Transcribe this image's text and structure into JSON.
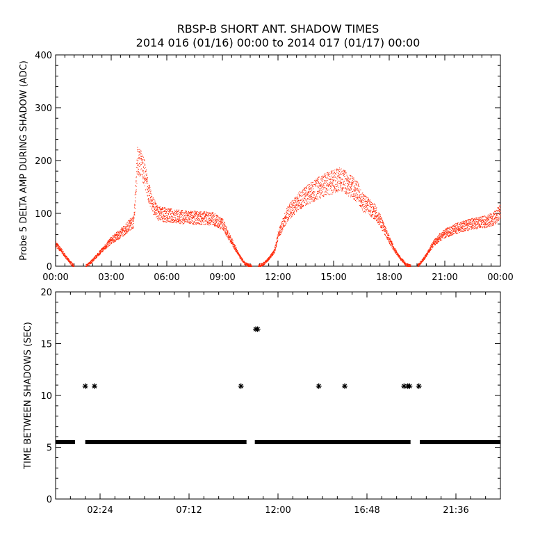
{
  "title": "RBSP-B SHORT ANT. SHADOW TIMES",
  "subtitle": "2014 016 (01/16) 00:00 to 2014 017 (01/17) 00:00",
  "colors": {
    "top_series": "#ff2200",
    "bottom_series": "#000000",
    "axis": "#000000"
  },
  "chart_data": [
    {
      "type": "scatter",
      "ylabel": "Probe 5 DELTA AMP DURING SHADOW (ADC)",
      "xlabel": "",
      "xlim": [
        0,
        24
      ],
      "ylim": [
        0,
        400
      ],
      "xticks": [
        0,
        3,
        6,
        9,
        12,
        15,
        18,
        21,
        24
      ],
      "xtick_labels": [
        "00:00",
        "03:00",
        "06:00",
        "09:00",
        "12:00",
        "15:00",
        "18:00",
        "21:00",
        "00:00"
      ],
      "yticks": [
        0,
        100,
        200,
        300,
        400
      ],
      "ytick_labels": [
        "0",
        "100",
        "200",
        "300",
        "400"
      ],
      "series": [
        {
          "x": [
            0,
            0.3,
            0.6,
            0.9,
            1.0,
            1.6,
            1.8,
            2.2,
            2.6,
            3.0,
            3.4,
            3.8,
            4.0,
            4.2,
            4.4,
            4.6,
            4.8,
            5.0,
            5.2,
            5.4,
            5.6,
            6.0,
            6.5,
            7.0,
            7.5,
            8.0,
            8.5,
            9.0,
            9.3,
            9.6,
            9.9,
            10.2,
            10.6,
            10.9,
            11.2,
            11.5,
            11.8,
            12.0,
            12.5,
            13.0,
            13.5,
            14.0,
            14.5,
            15.0,
            15.3,
            15.6,
            16.0,
            16.3,
            16.6,
            17.0,
            17.3,
            17.6,
            18.0,
            18.3,
            18.6,
            18.9,
            19.2,
            19.5,
            19.8,
            20.1,
            20.4,
            20.8,
            21.2,
            21.6,
            22.0,
            22.4,
            22.8,
            23.2,
            23.6,
            24.0
          ],
          "y": [
            42,
            30,
            15,
            3,
            0,
            0,
            5,
            20,
            35,
            50,
            60,
            72,
            80,
            85,
            200,
            195,
            175,
            140,
            120,
            105,
            100,
            97,
            95,
            93,
            92,
            92,
            90,
            80,
            60,
            40,
            20,
            5,
            0,
            0,
            5,
            15,
            30,
            60,
            100,
            120,
            135,
            145,
            155,
            160,
            165,
            160,
            150,
            140,
            120,
            110,
            100,
            80,
            50,
            30,
            15,
            3,
            0,
            0,
            12,
            28,
            45,
            58,
            66,
            72,
            76,
            80,
            82,
            85,
            90,
            105
          ]
        }
      ]
    },
    {
      "type": "scatter",
      "ylabel": "TIME BETWEEN SHADOWS (SEC)",
      "xlabel": "",
      "xlim": [
        0,
        24
      ],
      "ylim": [
        0,
        20
      ],
      "xticks": [
        2.4,
        7.2,
        12.0,
        16.8,
        21.6
      ],
      "xtick_labels": [
        "02:24",
        "07:12",
        "12:00",
        "16:48",
        "21:36"
      ],
      "yticks": [
        0,
        5,
        10,
        15,
        20
      ],
      "ytick_labels": [
        "0",
        "5",
        "10",
        "15",
        "20"
      ],
      "baseline": {
        "value": 5.5,
        "segments": [
          [
            0,
            1.05
          ],
          [
            1.6,
            10.3
          ],
          [
            10.75,
            19.15
          ],
          [
            19.65,
            24
          ]
        ]
      },
      "points": {
        "x": [
          1.6,
          2.1,
          10.0,
          10.8,
          10.9,
          14.2,
          15.6,
          18.8,
          19.0,
          19.1,
          19.6
        ],
        "y": [
          10.9,
          10.9,
          10.9,
          16.4,
          16.4,
          10.9,
          10.9,
          10.9,
          10.9,
          10.9,
          10.9
        ]
      }
    }
  ]
}
